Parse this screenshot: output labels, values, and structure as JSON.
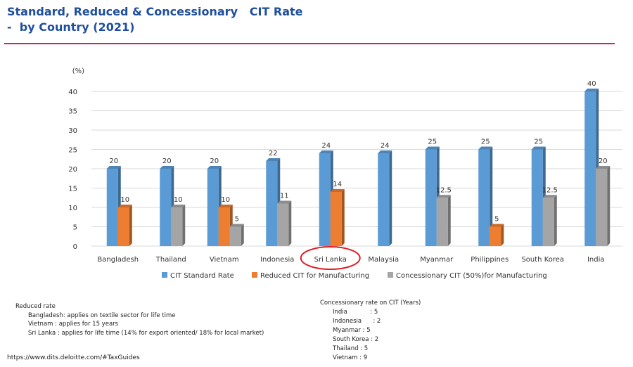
{
  "title": {
    "line1": "Standard, Reduced & Concessionary   CIT Rate",
    "line2": "-  by Country (2021)"
  },
  "colors": {
    "title": "#1f4e9c",
    "rule": "#e0195f",
    "standard": "#5b9bd5",
    "reduced": "#ed7d31",
    "concessionary": "#a5a5a5",
    "highlight_circle": "#e31b23"
  },
  "chart_data": {
    "type": "bar",
    "ylabel": "(%)",
    "ylim": [
      0,
      40
    ],
    "yticks": [
      0,
      5,
      10,
      15,
      20,
      25,
      30,
      35,
      40
    ],
    "grid": true,
    "legend_position": "bottom",
    "categories": [
      "Bangladesh",
      "Thailand",
      "Vietnam",
      "Indonesia",
      "Sri Lanka",
      "Malaysia",
      "Myanmar",
      "Philippines",
      "South Korea",
      "India"
    ],
    "highlighted_category": "Sri Lanka",
    "series": [
      {
        "name": "CIT Standard Rate",
        "values": [
          20,
          20,
          20,
          22,
          24,
          24,
          25,
          25,
          25,
          40
        ]
      },
      {
        "name": "Reduced CIT for Manufacturing",
        "values": [
          10,
          null,
          10,
          null,
          14,
          null,
          null,
          5,
          null,
          null
        ]
      },
      {
        "name": "Concessionary CIT (50%)for Manufacturing",
        "values": [
          null,
          10,
          5,
          11,
          null,
          null,
          12.5,
          null,
          12.5,
          20
        ]
      }
    ]
  },
  "notes": {
    "reduced_rate": {
      "heading": "Reduced rate",
      "lines": [
        "Bangladesh: applies on textile sector for life time",
        "Vietnam : applies for 15 years",
        "Sri Lanka : applies for life time (14% for export oriented/ 18% for local market)"
      ]
    },
    "concessionary": {
      "heading": "Concessionary rate on CIT (Years)",
      "lines": [
        "India            : 5",
        "Indonesia      : 2",
        "Myanmar : 5",
        "South Korea : 2",
        "Thailand : 5",
        "Vietnam : 9"
      ]
    }
  },
  "source": "https://www.dits.deloitte.com/#TaxGuides"
}
